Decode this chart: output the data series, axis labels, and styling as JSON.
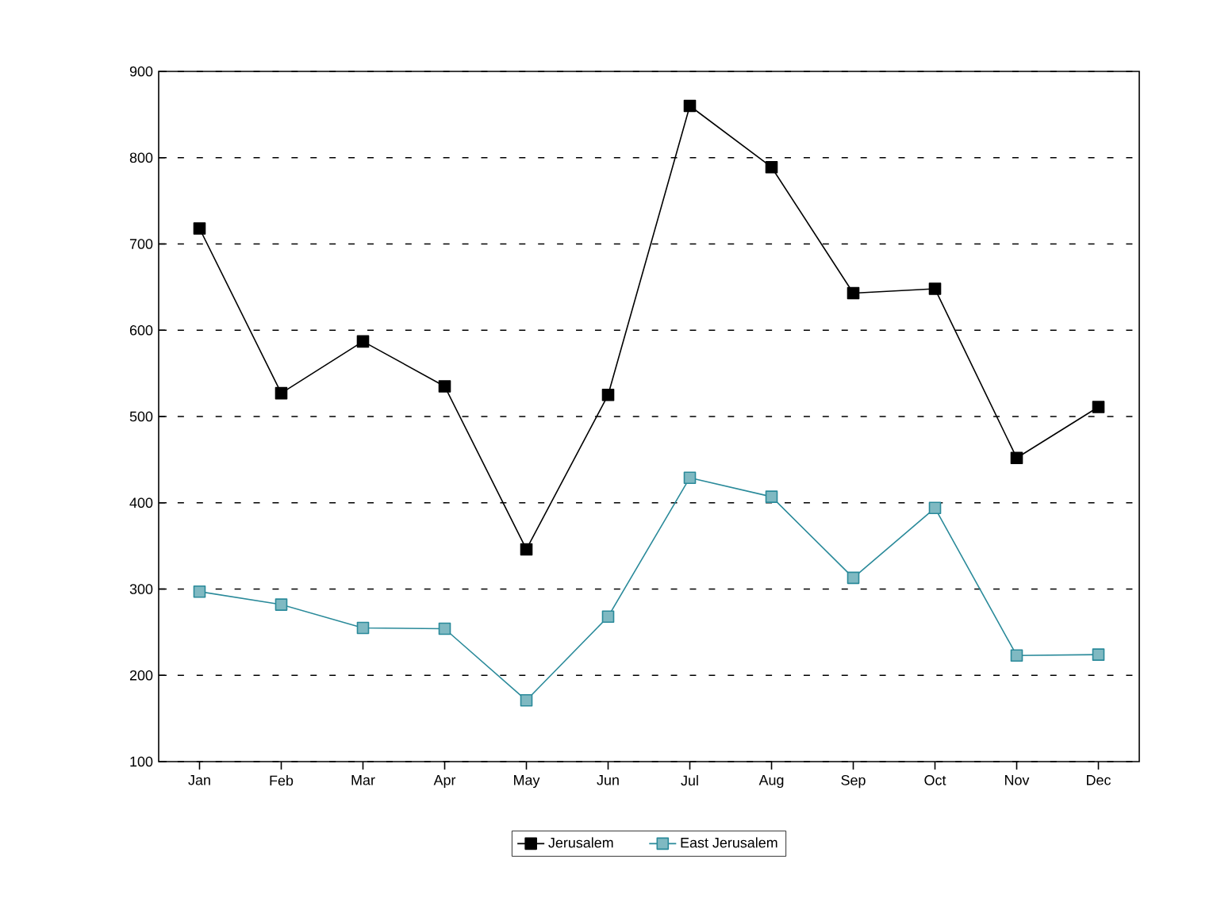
{
  "chart_data": {
    "type": "line",
    "categories": [
      "Jan",
      "Feb",
      "Mar",
      "Apr",
      "May",
      "Jun",
      "Jul",
      "Aug",
      "Sep",
      "Oct",
      "Nov",
      "Dec"
    ],
    "series": [
      {
        "name": "Jerusalem",
        "color": "#000000",
        "marker": "square",
        "values": [
          718,
          527,
          587,
          535,
          346,
          525,
          860,
          789,
          643,
          648,
          452,
          511
        ]
      },
      {
        "name": "East Jerusalem",
        "color": "#2a8a9a",
        "marker": "square",
        "values": [
          297,
          282,
          255,
          254,
          171,
          268,
          429,
          407,
          313,
          394,
          223,
          224
        ]
      }
    ],
    "ylim": [
      100,
      900
    ],
    "yticks": [
      100,
      200,
      300,
      400,
      500,
      600,
      700,
      800,
      900
    ],
    "grid": "y",
    "legend": "bottom",
    "line_style": "solid"
  }
}
